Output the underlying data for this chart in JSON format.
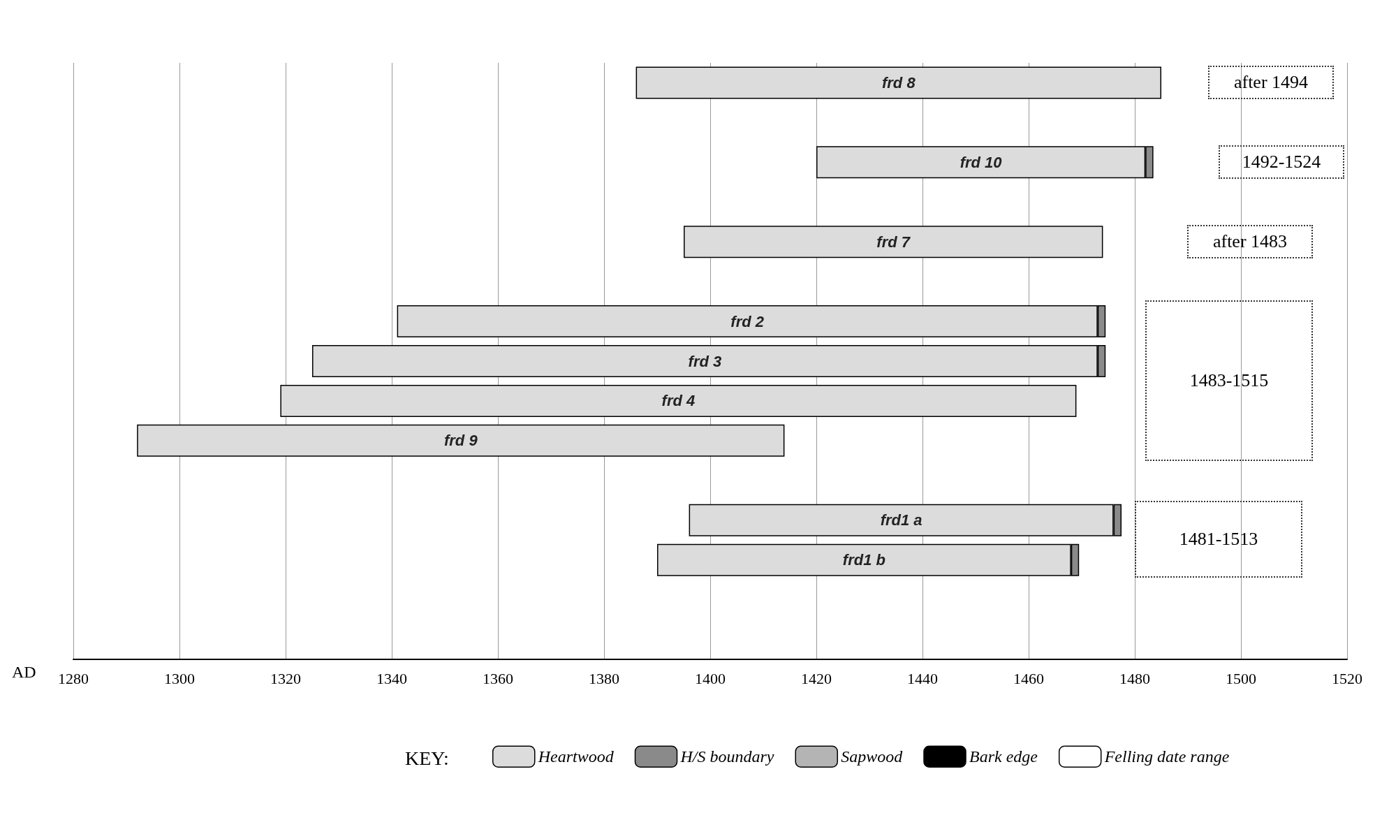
{
  "chart_data": {
    "type": "bar",
    "orientation": "horizontal",
    "categories": [
      "frd 8",
      null,
      "frd 10",
      null,
      "frd 7",
      null,
      "frd 2",
      "frd 3",
      "frd 4",
      "frd 9",
      null,
      "frd1 a",
      "frd1 b",
      null,
      null
    ],
    "series": [
      {
        "name": "Heartwood",
        "color": "#dcdcdc",
        "base": [
          1386,
          null,
          1420,
          null,
          1395,
          null,
          1341,
          1325,
          1319,
          1292,
          null,
          1396,
          1390,
          null,
          null
        ],
        "values": [
          99,
          null,
          62,
          null,
          79,
          null,
          132,
          148,
          150,
          122,
          null,
          80,
          78,
          null,
          null
        ]
      },
      {
        "name": "H/S boundary",
        "color": "#8a8a8a",
        "base": [
          null,
          null,
          1482,
          null,
          null,
          null,
          1473,
          1473,
          null,
          null,
          null,
          1476,
          1468,
          null,
          null
        ],
        "values": [
          null,
          null,
          1.5,
          null,
          null,
          null,
          1.5,
          1.5,
          null,
          null,
          null,
          1.5,
          1.5,
          null,
          null
        ]
      },
      {
        "name": "Sapwood",
        "color": "#b4b4b4",
        "values": [
          null,
          null,
          null,
          null,
          null,
          null,
          null,
          null,
          null,
          null,
          null,
          null,
          null,
          null,
          null
        ]
      },
      {
        "name": "Bark edge",
        "color": "#000000",
        "values": [
          null,
          null,
          null,
          null,
          null,
          null,
          null,
          null,
          null,
          null,
          null,
          null,
          null,
          null,
          null
        ]
      },
      {
        "name": "Felling date range",
        "color": "#ffffff",
        "values": [
          null,
          null,
          null,
          null,
          null,
          null,
          null,
          null,
          null,
          null,
          null,
          null,
          null,
          null,
          null
        ]
      }
    ],
    "xlabel": "AD",
    "legend_title": "KEY:",
    "legend": "bottom",
    "grid": "x",
    "xlim": [
      1280,
      1520
    ],
    "xticks": [
      1280,
      1300,
      1320,
      1340,
      1360,
      1380,
      1400,
      1420,
      1440,
      1460,
      1480,
      1500,
      1520
    ],
    "annotations": [
      "after 1494",
      "1492-1524",
      "after 1483",
      "1483-1515",
      "1481-1513"
    ]
  }
}
